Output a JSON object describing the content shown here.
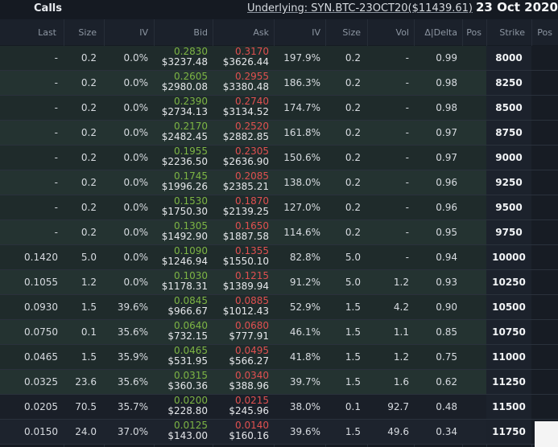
{
  "header": {
    "calls_label": "Calls",
    "underlying": "Underlying: SYN.BTC-23OCT20($11439.61)",
    "expiry_date": "23 Oct 2020"
  },
  "columns": [
    "Last",
    "Size",
    "IV",
    "Bid",
    "Ask",
    "IV",
    "Size",
    "Vol",
    "Δ|Delta",
    "Pos",
    "Strike",
    "Pos"
  ],
  "rows": [
    {
      "last": "-",
      "size": "0.2",
      "iv": "0.0%",
      "bid": "0.2830",
      "bid_usd": "$3237.48",
      "ask": "0.3170",
      "ask_usd": "$3626.44",
      "iv2": "197.9%",
      "size2": "0.2",
      "vol": "-",
      "delta": "0.99",
      "pos": "",
      "strike": "8000"
    },
    {
      "last": "-",
      "size": "0.2",
      "iv": "0.0%",
      "bid": "0.2605",
      "bid_usd": "$2980.08",
      "ask": "0.2955",
      "ask_usd": "$3380.48",
      "iv2": "186.3%",
      "size2": "0.2",
      "vol": "-",
      "delta": "0.98",
      "pos": "",
      "strike": "8250"
    },
    {
      "last": "-",
      "size": "0.2",
      "iv": "0.0%",
      "bid": "0.2390",
      "bid_usd": "$2734.13",
      "ask": "0.2740",
      "ask_usd": "$3134.52",
      "iv2": "174.7%",
      "size2": "0.2",
      "vol": "-",
      "delta": "0.98",
      "pos": "",
      "strike": "8500"
    },
    {
      "last": "-",
      "size": "0.2",
      "iv": "0.0%",
      "bid": "0.2170",
      "bid_usd": "$2482.45",
      "ask": "0.2520",
      "ask_usd": "$2882.85",
      "iv2": "161.8%",
      "size2": "0.2",
      "vol": "-",
      "delta": "0.97",
      "pos": "",
      "strike": "8750"
    },
    {
      "last": "-",
      "size": "0.2",
      "iv": "0.0%",
      "bid": "0.1955",
      "bid_usd": "$2236.50",
      "ask": "0.2305",
      "ask_usd": "$2636.90",
      "iv2": "150.6%",
      "size2": "0.2",
      "vol": "-",
      "delta": "0.97",
      "pos": "",
      "strike": "9000"
    },
    {
      "last": "-",
      "size": "0.2",
      "iv": "0.0%",
      "bid": "0.1745",
      "bid_usd": "$1996.26",
      "ask": "0.2085",
      "ask_usd": "$2385.21",
      "iv2": "138.0%",
      "size2": "0.2",
      "vol": "-",
      "delta": "0.96",
      "pos": "",
      "strike": "9250"
    },
    {
      "last": "-",
      "size": "0.2",
      "iv": "0.0%",
      "bid": "0.1530",
      "bid_usd": "$1750.30",
      "ask": "0.1870",
      "ask_usd": "$2139.25",
      "iv2": "127.0%",
      "size2": "0.2",
      "vol": "-",
      "delta": "0.96",
      "pos": "",
      "strike": "9500"
    },
    {
      "last": "-",
      "size": "0.2",
      "iv": "0.0%",
      "bid": "0.1305",
      "bid_usd": "$1492.90",
      "ask": "0.1650",
      "ask_usd": "$1887.58",
      "iv2": "114.6%",
      "size2": "0.2",
      "vol": "-",
      "delta": "0.95",
      "pos": "",
      "strike": "9750"
    },
    {
      "last": "0.1420",
      "size": "5.0",
      "iv": "0.0%",
      "bid": "0.1090",
      "bid_usd": "$1246.94",
      "ask": "0.1355",
      "ask_usd": "$1550.10",
      "iv2": "82.8%",
      "size2": "5.0",
      "vol": "-",
      "delta": "0.94",
      "pos": "",
      "strike": "10000"
    },
    {
      "last": "0.1055",
      "size": "1.2",
      "iv": "0.0%",
      "bid": "0.1030",
      "bid_usd": "$1178.31",
      "ask": "0.1215",
      "ask_usd": "$1389.94",
      "iv2": "91.2%",
      "size2": "5.0",
      "vol": "1.2",
      "delta": "0.93",
      "pos": "",
      "strike": "10250"
    },
    {
      "last": "0.0930",
      "size": "1.5",
      "iv": "39.6%",
      "bid": "0.0845",
      "bid_usd": "$966.67",
      "ask": "0.0885",
      "ask_usd": "$1012.43",
      "iv2": "52.9%",
      "size2": "1.5",
      "vol": "4.2",
      "delta": "0.90",
      "pos": "",
      "strike": "10500"
    },
    {
      "last": "0.0750",
      "size": "0.1",
      "iv": "35.6%",
      "bid": "0.0640",
      "bid_usd": "$732.15",
      "ask": "0.0680",
      "ask_usd": "$777.91",
      "iv2": "46.1%",
      "size2": "1.5",
      "vol": "1.1",
      "delta": "0.85",
      "pos": "",
      "strike": "10750"
    },
    {
      "last": "0.0465",
      "size": "1.5",
      "iv": "35.9%",
      "bid": "0.0465",
      "bid_usd": "$531.95",
      "ask": "0.0495",
      "ask_usd": "$566.27",
      "iv2": "41.8%",
      "size2": "1.5",
      "vol": "1.2",
      "delta": "0.75",
      "pos": "",
      "strike": "11000"
    },
    {
      "last": "0.0325",
      "size": "23.6",
      "iv": "35.6%",
      "bid": "0.0315",
      "bid_usd": "$360.36",
      "ask": "0.0340",
      "ask_usd": "$388.96",
      "iv2": "39.7%",
      "size2": "1.5",
      "vol": "1.6",
      "delta": "0.62",
      "pos": "",
      "strike": "11250"
    },
    {
      "last": "0.0205",
      "size": "70.5",
      "iv": "35.7%",
      "bid": "0.0200",
      "bid_usd": "$228.80",
      "ask": "0.0215",
      "ask_usd": "$245.96",
      "iv2": "38.0%",
      "size2": "0.1",
      "vol": "92.7",
      "delta": "0.48",
      "pos": "",
      "strike": "11500"
    },
    {
      "last": "0.0150",
      "size": "24.0",
      "iv": "37.0%",
      "bid": "0.0125",
      "bid_usd": "$143.00",
      "ask": "0.0140",
      "ask_usd": "$160.16",
      "iv2": "39.6%",
      "size2": "1.5",
      "vol": "49.6",
      "delta": "0.34",
      "pos": "",
      "strike": "11750"
    }
  ]
}
